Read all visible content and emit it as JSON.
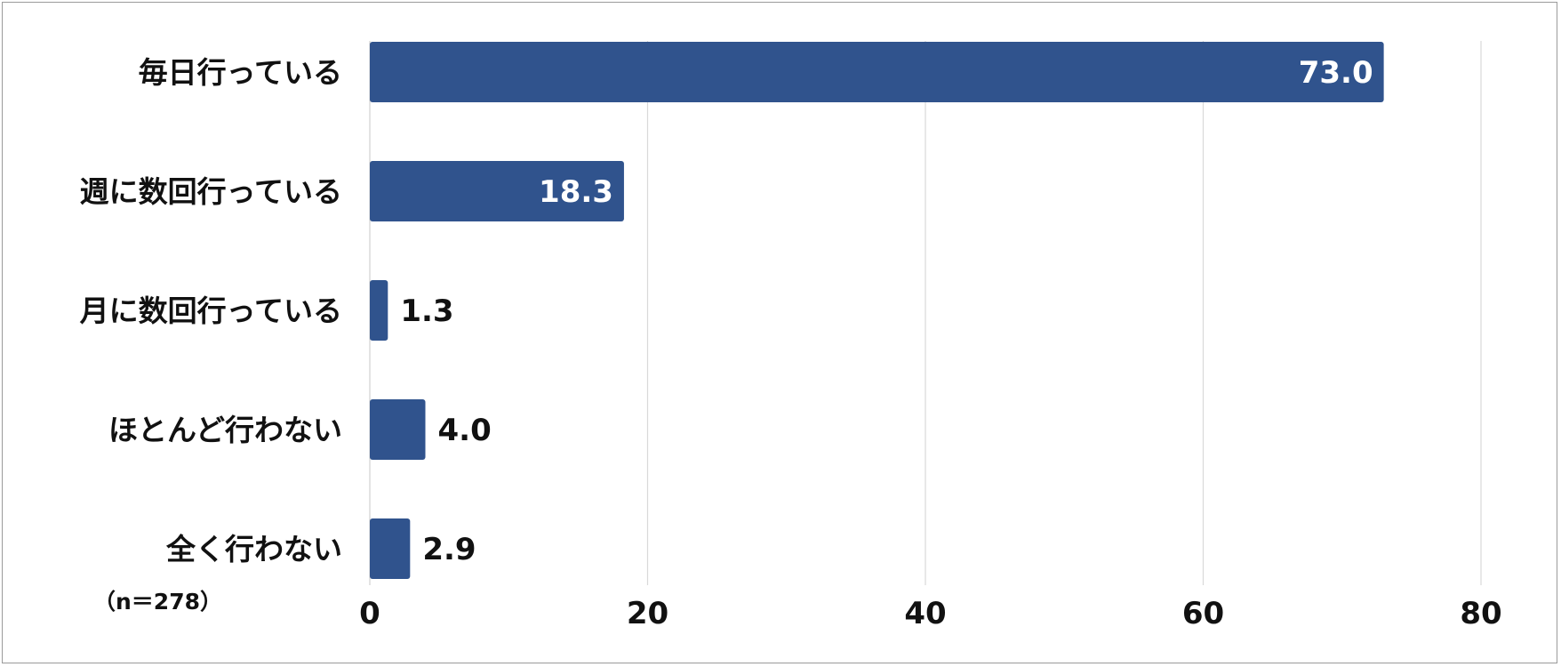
{
  "chart_data": {
    "type": "bar",
    "orientation": "horizontal",
    "categories": [
      "毎日行っている",
      "週に数回行っている",
      "月に数回行っている",
      "ほとんど行わない",
      "全く行わない"
    ],
    "values": [
      73.0,
      18.3,
      1.3,
      4.0,
      2.9
    ],
    "value_labels": [
      "73.0",
      "18.3",
      "1.3",
      "4.0",
      "2.9"
    ],
    "xlim": [
      0,
      80
    ],
    "xticks": [
      0,
      20,
      40,
      60,
      80
    ],
    "grid": "vertical",
    "title": "",
    "xlabel": "",
    "ylabel": "",
    "note": "（n＝278）",
    "bar_color": "#30538d",
    "grid_color": "#d9d9d9",
    "inside_label_color": "#ffffff",
    "outside_label_color": "#111111"
  }
}
